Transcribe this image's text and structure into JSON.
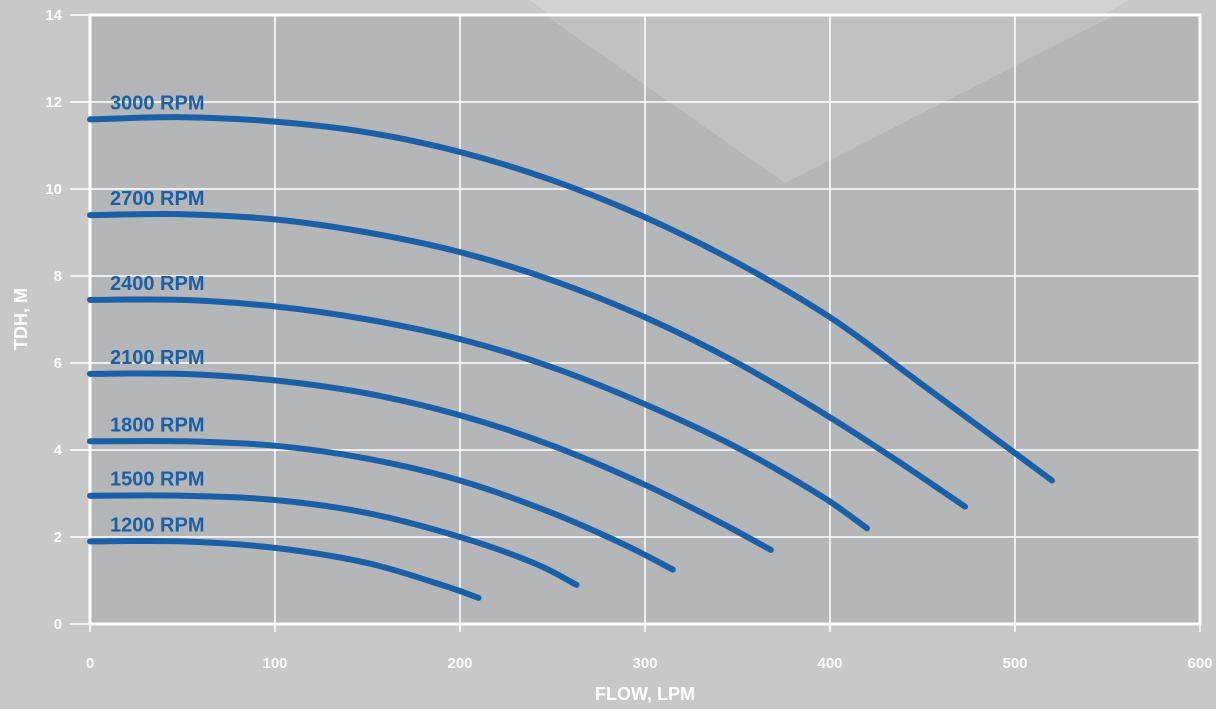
{
  "chart_data": {
    "type": "line",
    "title": "",
    "xlabel": "FLOW, LPM",
    "ylabel": "TDH, M",
    "xlim": [
      0,
      600
    ],
    "ylim": [
      0,
      14
    ],
    "xticks": [
      0,
      100,
      200,
      300,
      400,
      500,
      600
    ],
    "yticks": [
      0,
      2,
      4,
      6,
      8,
      10,
      12,
      14
    ],
    "grid": true,
    "legend": "inline labels above each curve at left",
    "colors": {
      "background": "#c8c8c8",
      "plot_area": "#b4b6b8",
      "grid": "#ffffff",
      "series": "#1b5fa6",
      "tick_label": "#ffffff",
      "axis_label": "#ffffff"
    },
    "series": [
      {
        "name": "3000 RPM",
        "x": [
          0,
          50,
          100,
          150,
          200,
          250,
          300,
          350,
          400,
          450,
          520
        ],
        "y": [
          11.6,
          11.65,
          11.55,
          11.3,
          10.85,
          10.2,
          9.35,
          8.3,
          7.05,
          5.5,
          3.3
        ]
      },
      {
        "name": "2700 RPM",
        "x": [
          0,
          50,
          100,
          150,
          200,
          250,
          300,
          350,
          400,
          440,
          473
        ],
        "y": [
          9.4,
          9.42,
          9.3,
          9.0,
          8.55,
          7.9,
          7.05,
          6.0,
          4.75,
          3.65,
          2.7
        ]
      },
      {
        "name": "2400 RPM",
        "x": [
          0,
          50,
          100,
          150,
          200,
          250,
          300,
          350,
          395,
          420
        ],
        "y": [
          7.45,
          7.45,
          7.3,
          7.0,
          6.55,
          5.9,
          5.05,
          4.05,
          2.95,
          2.2
        ]
      },
      {
        "name": "2100 RPM",
        "x": [
          0,
          50,
          100,
          150,
          200,
          250,
          300,
          340,
          368
        ],
        "y": [
          5.75,
          5.75,
          5.6,
          5.3,
          4.8,
          4.1,
          3.2,
          2.35,
          1.7
        ]
      },
      {
        "name": "1800 RPM",
        "x": [
          0,
          50,
          100,
          150,
          200,
          250,
          290,
          315
        ],
        "y": [
          4.2,
          4.2,
          4.1,
          3.8,
          3.3,
          2.55,
          1.8,
          1.25
        ]
      },
      {
        "name": "1500 RPM",
        "x": [
          0,
          50,
          100,
          150,
          200,
          240,
          263
        ],
        "y": [
          2.95,
          2.95,
          2.85,
          2.55,
          2.0,
          1.4,
          0.9
        ]
      },
      {
        "name": "1200 RPM",
        "x": [
          0,
          50,
          100,
          150,
          190,
          210
        ],
        "y": [
          1.9,
          1.9,
          1.75,
          1.4,
          0.9,
          0.6
        ]
      }
    ]
  }
}
